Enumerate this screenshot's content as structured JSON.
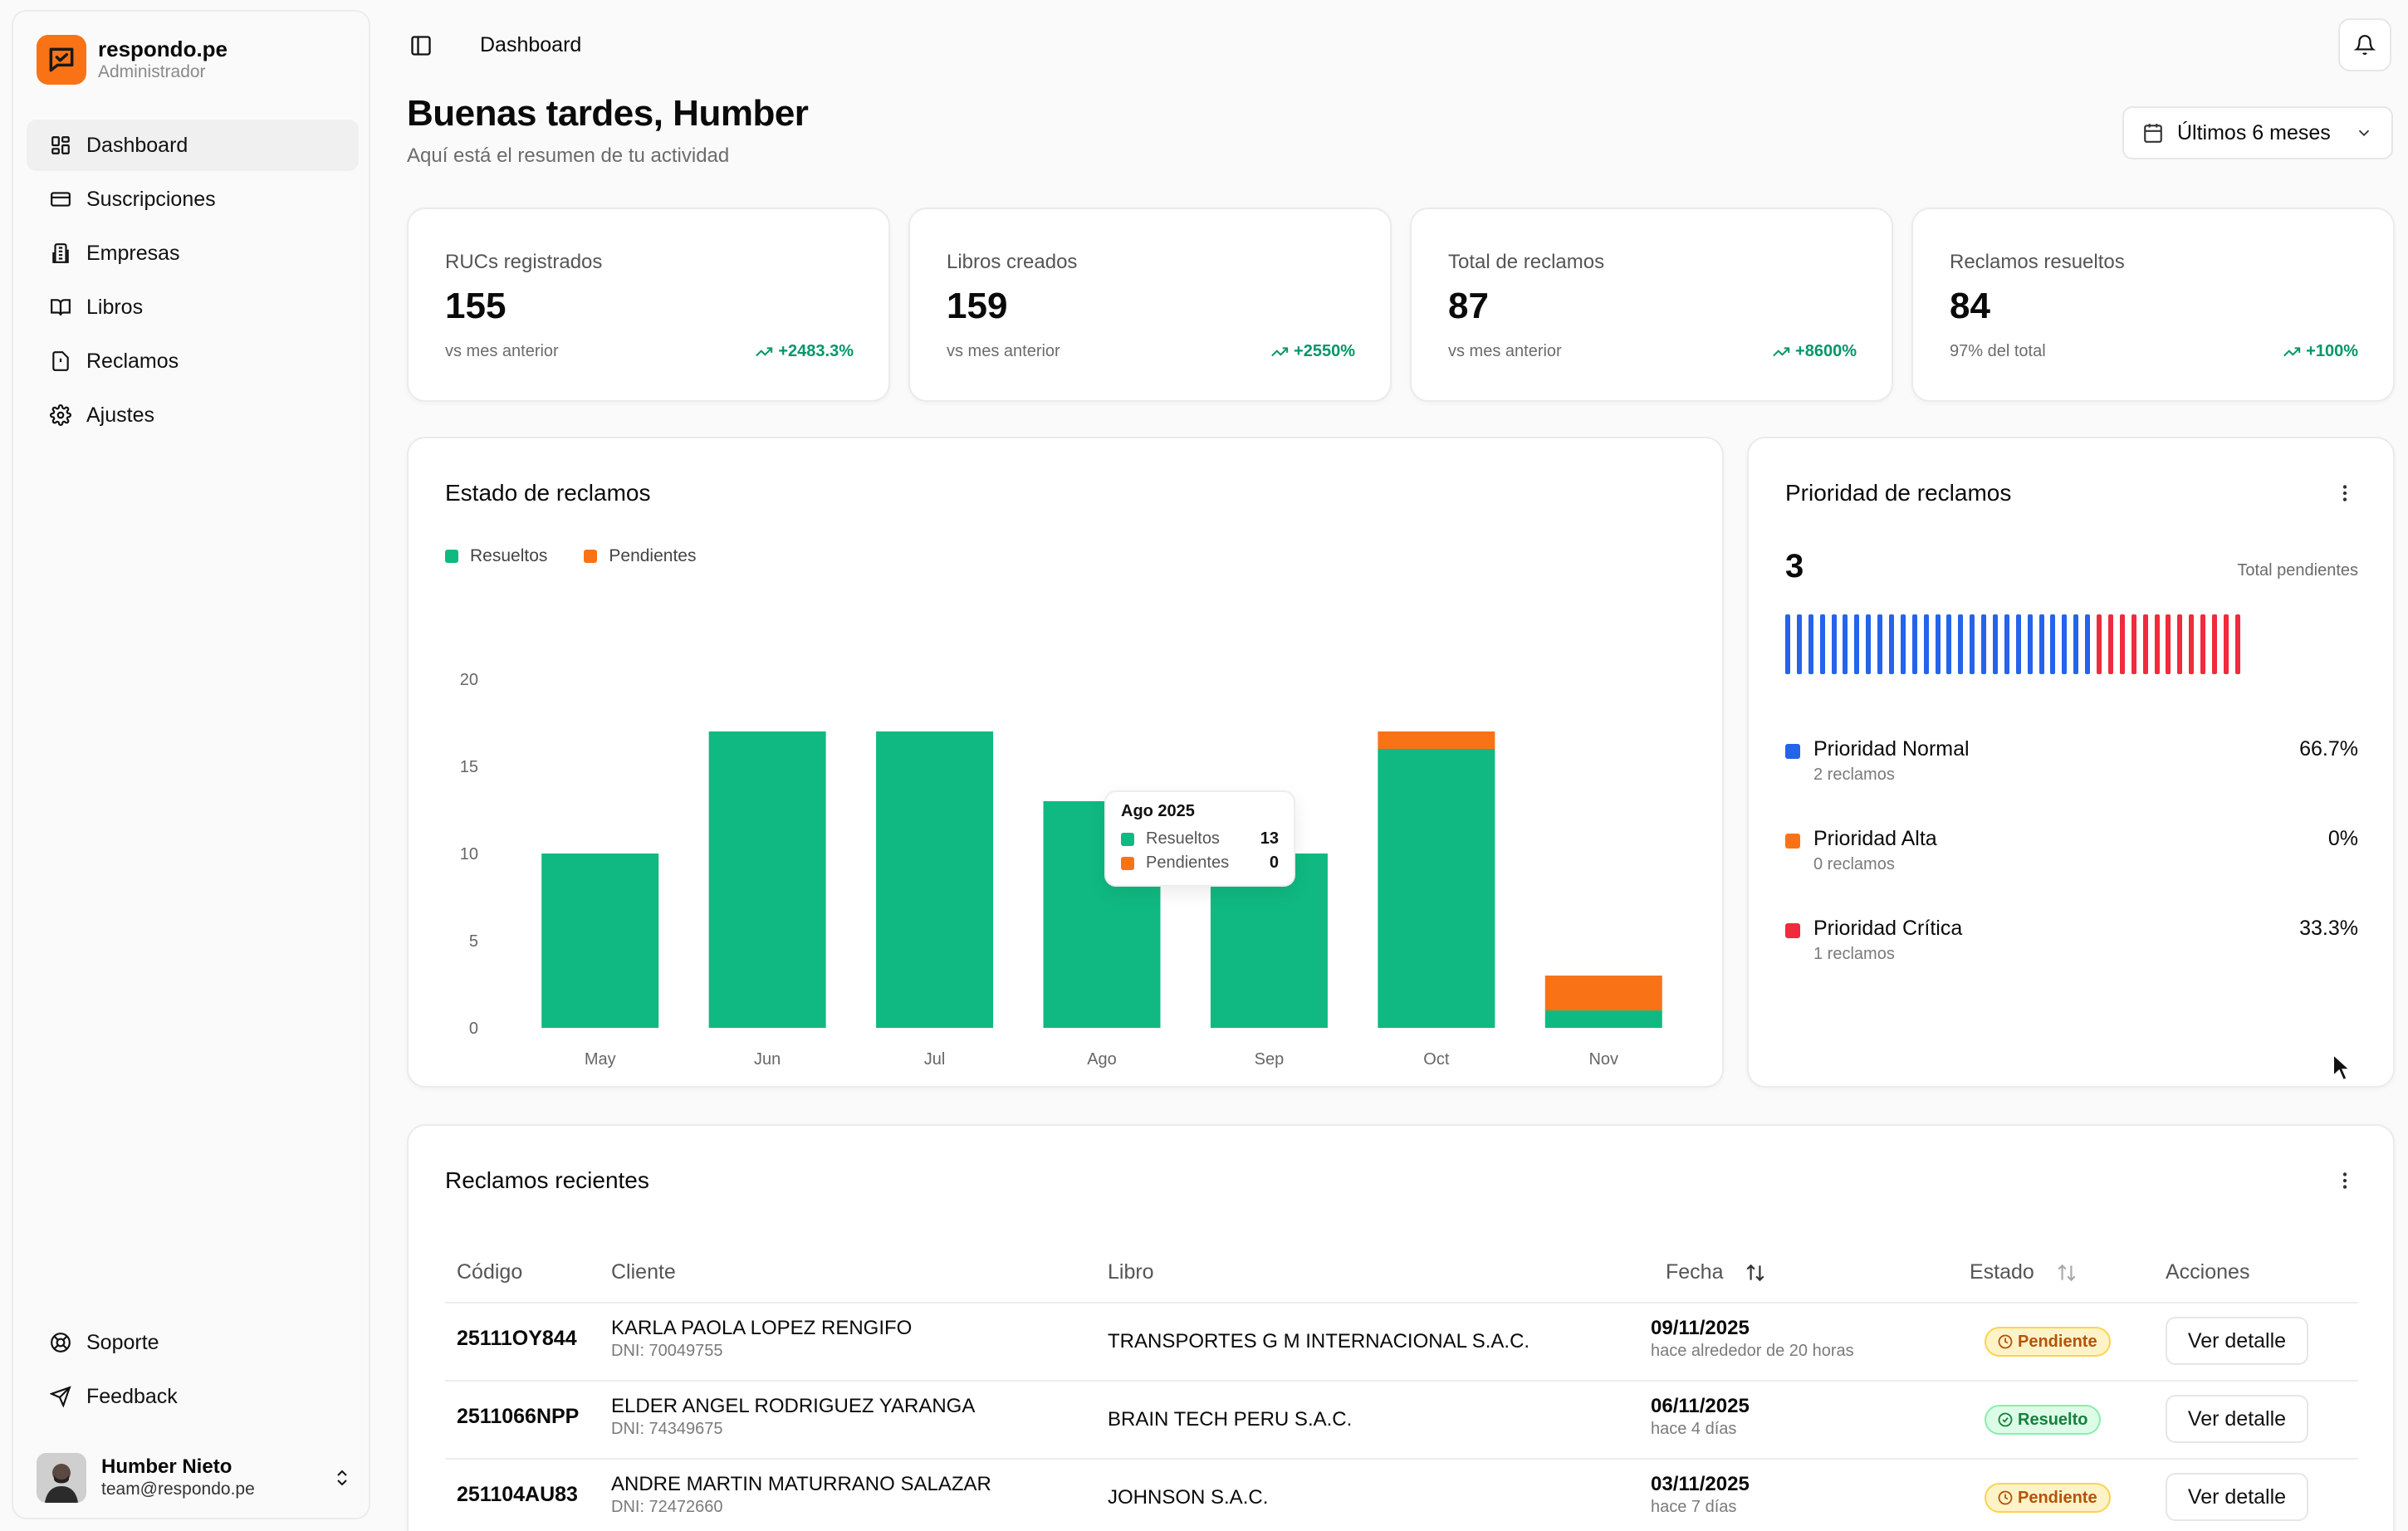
{
  "brand": {
    "name": "respondo.pe",
    "role": "Administrador"
  },
  "nav": {
    "items": [
      {
        "label": "Dashboard",
        "icon": "dashboard-icon"
      },
      {
        "label": "Suscripciones",
        "icon": "card-icon"
      },
      {
        "label": "Empresas",
        "icon": "building-icon"
      },
      {
        "label": "Libros",
        "icon": "book-icon"
      },
      {
        "label": "Reclamos",
        "icon": "alert-file-icon"
      },
      {
        "label": "Ajustes",
        "icon": "gear-icon"
      }
    ],
    "bottom": [
      {
        "label": "Soporte",
        "icon": "lifebuoy-icon"
      },
      {
        "label": "Feedback",
        "icon": "send-icon"
      }
    ]
  },
  "user": {
    "name": "Humber Nieto",
    "email": "team@respondo.pe"
  },
  "header": {
    "breadcrumb": "Dashboard",
    "greeting": "Buenas tardes, Humber",
    "subtitle": "Aquí está el resumen de tu actividad",
    "range": "Últimos 6 meses"
  },
  "stats": [
    {
      "label": "RUCs registrados",
      "value": "155",
      "foot": "vs mes anterior",
      "trend": "+2483.3%"
    },
    {
      "label": "Libros creados",
      "value": "159",
      "foot": "vs mes anterior",
      "trend": "+2550%"
    },
    {
      "label": "Total de reclamos",
      "value": "87",
      "foot": "vs mes anterior",
      "trend": "+8600%"
    },
    {
      "label": "Reclamos resueltos",
      "value": "84",
      "foot": "97% del total",
      "trend": "+100%"
    }
  ],
  "estado": {
    "title": "Estado de reclamos",
    "legend": {
      "resolved": "Resueltos",
      "pending": "Pendientes"
    },
    "tooltip": {
      "title": "Ago 2025",
      "resolved_label": "Resueltos",
      "resolved_value": "13",
      "pending_label": "Pendientes",
      "pending_value": "0"
    }
  },
  "chart_data": {
    "type": "bar",
    "stacked": true,
    "title": "Estado de reclamos",
    "categories": [
      "May",
      "Jun",
      "Jul",
      "Ago",
      "Sep",
      "Oct",
      "Nov"
    ],
    "series": [
      {
        "name": "Resueltos",
        "color": "#10b981",
        "values": [
          10,
          17,
          17,
          13,
          10,
          16,
          1
        ]
      },
      {
        "name": "Pendientes",
        "color": "#f97316",
        "values": [
          0,
          0,
          0,
          0,
          0,
          1,
          2
        ]
      }
    ],
    "yticks": [
      0,
      5,
      10,
      15,
      20
    ],
    "ylim": [
      0,
      20
    ],
    "grid": false,
    "legend": "top-left"
  },
  "prioridad": {
    "title": "Prioridad de reclamos",
    "total": "3",
    "total_label": "Total pendientes",
    "bar_count": 40,
    "blue_fraction": 0.667,
    "rows": [
      {
        "name": "Prioridad Normal",
        "sub": "2 reclamos",
        "pct": "66.7%",
        "color": "#2563eb"
      },
      {
        "name": "Prioridad Alta",
        "sub": "0 reclamos",
        "pct": "0%",
        "color": "#f97316"
      },
      {
        "name": "Prioridad Crítica",
        "sub": "1 reclamos",
        "pct": "33.3%",
        "color": "#ef2b3d"
      }
    ]
  },
  "recientes": {
    "title": "Reclamos recientes",
    "columns": {
      "code": "Código",
      "client": "Cliente",
      "book": "Libro",
      "date": "Fecha",
      "status": "Estado",
      "actions": "Acciones"
    },
    "rows": [
      {
        "code": "25111OY844",
        "client": "KARLA PAOLA LOPEZ RENGIFO",
        "doc": "DNI: 70049755",
        "book": "TRANSPORTES G M INTERNACIONAL S.A.C.",
        "date": "09/11/2025",
        "ago": "hace alrededor de 20 horas",
        "status": "Pendiente",
        "action": "Ver detalle"
      },
      {
        "code": "2511066NPP",
        "client": "ELDER ANGEL RODRIGUEZ YARANGA",
        "doc": "DNI: 74349675",
        "book": "BRAIN TECH PERU S.A.C.",
        "date": "06/11/2025",
        "ago": "hace 4 días",
        "status": "Resuelto",
        "action": "Ver detalle"
      },
      {
        "code": "251104AU83",
        "client": "ANDRE MARTIN MATURRANO SALAZAR",
        "doc": "DNI: 72472660",
        "book": "JOHNSON S.A.C.",
        "date": "03/11/2025",
        "ago": "hace 7 días",
        "status": "Pendiente",
        "action": "Ver detalle"
      }
    ]
  }
}
